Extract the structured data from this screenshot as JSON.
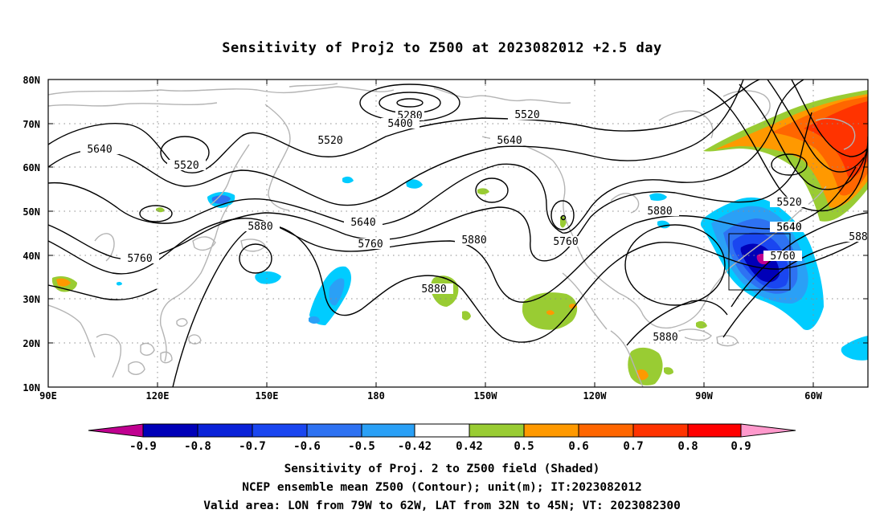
{
  "title": "Sensitivity of Proj2 to Z500 at 2023082012 +2.5 day",
  "map": {
    "lat_labels": [
      "80N",
      "70N",
      "60N",
      "50N",
      "40N",
      "30N",
      "20N",
      "10N"
    ],
    "lon_labels": [
      "90E",
      "120E",
      "150E",
      "180",
      "150W",
      "120W",
      "90W",
      "60W"
    ],
    "extent": {
      "lon": [
        90,
        315
      ],
      "lat": [
        10,
        80
      ]
    },
    "valid_box": {
      "lon": [
        281,
        298
      ],
      "lat": [
        32,
        45
      ]
    },
    "contour_labels": [
      "5280",
      "5400",
      "5520",
      "5520",
      "5520",
      "5640",
      "5640",
      "5640",
      "5760",
      "5760",
      "5880",
      "5880",
      "5880",
      "5880",
      "5880",
      "5640",
      "5760",
      "5520",
      "5640",
      "5760",
      "588"
    ]
  },
  "colorbar": {
    "labels": [
      "-0.9",
      "-0.8",
      "-0.7",
      "-0.6",
      "-0.5",
      "-0.42",
      "0.42",
      "0.5",
      "0.6",
      "0.7",
      "0.8",
      "0.9"
    ],
    "colors": [
      "#c00090",
      "#0000b8",
      "#0a22d8",
      "#1a46f0",
      "#2e72f2",
      "#2aa0f6",
      "#00ccff",
      "#ffffff",
      "#99cc33",
      "#ff9900",
      "#ff6600",
      "#ff3300",
      "#ff0000",
      "#ff99cc"
    ]
  },
  "caption": {
    "line1": "Sensitivity of Proj. 2 to Z500 field (Shaded)",
    "line2": "NCEP ensemble mean Z500 (Contour); unit(m); IT:2023082012",
    "line3": "Valid area: LON from 79W to 62W, LAT from 32N to 45N; VT: 2023082300"
  }
}
